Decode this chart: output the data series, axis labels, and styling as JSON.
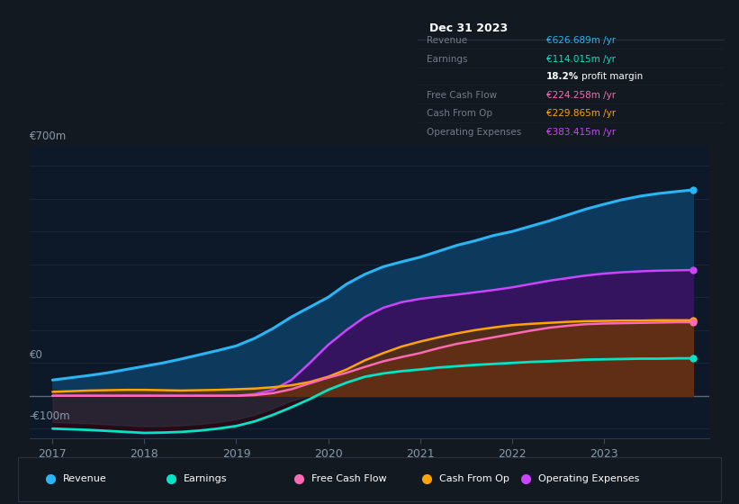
{
  "bg_color": "#131920",
  "plot_bg_color": "#131920",
  "panel_bg": "#0d0f14",
  "title_box": {
    "date": "Dec 31 2023",
    "rows": [
      {
        "label": "Revenue",
        "value": "€626.689m /yr",
        "value_color": "#29b6f6"
      },
      {
        "label": "Earnings",
        "value": "€114.015m /yr",
        "value_color": "#00e5c8"
      },
      {
        "label": "",
        "value2_bold": "18.2%",
        "value2_rest": " profit margin",
        "value_color": "#ffffff"
      },
      {
        "label": "Free Cash Flow",
        "value": "€224.258m /yr",
        "value_color": "#ff69b4"
      },
      {
        "label": "Cash From Op",
        "value": "€229.865m /yr",
        "value_color": "#ffa500"
      },
      {
        "label": "Operating Expenses",
        "value": "€383.415m /yr",
        "value_color": "#cc44ff"
      }
    ]
  },
  "ylim": [
    -130,
    760
  ],
  "ytick_positions": [
    -100,
    0,
    700
  ],
  "ytick_labels": [
    "-€100m",
    "€0",
    "€700m"
  ],
  "grid_lines": [
    -100,
    0,
    100,
    200,
    300,
    400,
    500,
    600,
    700
  ],
  "xlabel_ticks": [
    2017,
    2018,
    2019,
    2020,
    2021,
    2022,
    2023
  ],
  "series": {
    "x": [
      2017.0,
      2017.2,
      2017.4,
      2017.6,
      2017.8,
      2018.0,
      2018.2,
      2018.4,
      2018.6,
      2018.8,
      2019.0,
      2019.2,
      2019.4,
      2019.6,
      2019.8,
      2020.0,
      2020.2,
      2020.4,
      2020.6,
      2020.8,
      2021.0,
      2021.2,
      2021.4,
      2021.6,
      2021.8,
      2022.0,
      2022.2,
      2022.4,
      2022.6,
      2022.8,
      2023.0,
      2023.2,
      2023.4,
      2023.6,
      2023.8,
      2023.97
    ],
    "revenue": [
      48,
      55,
      62,
      70,
      80,
      90,
      100,
      112,
      125,
      138,
      152,
      175,
      205,
      240,
      270,
      300,
      340,
      370,
      393,
      408,
      422,
      440,
      458,
      472,
      488,
      500,
      516,
      532,
      550,
      568,
      583,
      597,
      608,
      616,
      622,
      627
    ],
    "earnings": [
      -100,
      -102,
      -104,
      -107,
      -110,
      -113,
      -112,
      -110,
      -106,
      -100,
      -92,
      -78,
      -58,
      -35,
      -10,
      18,
      40,
      58,
      68,
      75,
      80,
      86,
      90,
      94,
      97,
      100,
      103,
      105,
      107,
      110,
      111,
      112,
      113,
      113,
      114,
      114
    ],
    "free_cash_flow": [
      0,
      0,
      0,
      0,
      0,
      0,
      0,
      0,
      0,
      0,
      0,
      2,
      8,
      20,
      38,
      55,
      70,
      88,
      105,
      118,
      130,
      145,
      158,
      168,
      178,
      188,
      198,
      207,
      213,
      218,
      220,
      221,
      222,
      223,
      224,
      224
    ],
    "cash_from_op": [
      12,
      14,
      16,
      17,
      18,
      18,
      17,
      16,
      17,
      18,
      20,
      22,
      26,
      32,
      42,
      58,
      80,
      108,
      130,
      150,
      165,
      178,
      190,
      200,
      208,
      215,
      219,
      222,
      225,
      227,
      228,
      229,
      229,
      230,
      230,
      230
    ],
    "operating_expenses": [
      0,
      0,
      0,
      0,
      0,
      0,
      0,
      0,
      0,
      0,
      0,
      5,
      18,
      48,
      100,
      155,
      200,
      240,
      268,
      285,
      295,
      302,
      308,
      315,
      322,
      330,
      340,
      350,
      358,
      366,
      372,
      376,
      379,
      381,
      382,
      383
    ]
  },
  "colors": {
    "revenue_line": "#29b6f6",
    "revenue_fill": "#0d3a5c",
    "earnings_line": "#00e5c8",
    "earnings_fill_neg": "#2a0a15",
    "free_cash_flow_line": "#ff69b4",
    "free_cash_flow_fill": "#7a1a45",
    "cash_from_op_line": "#ffa500",
    "cash_from_op_fill": "#5a3800",
    "operating_expenses_line": "#cc44ff",
    "operating_expenses_fill": "#3a1060"
  },
  "legend_items": [
    {
      "label": "Revenue",
      "color": "#29b6f6"
    },
    {
      "label": "Earnings",
      "color": "#00e5c8"
    },
    {
      "label": "Free Cash Flow",
      "color": "#ff69b4"
    },
    {
      "label": "Cash From Op",
      "color": "#ffa500"
    },
    {
      "label": "Operating Expenses",
      "color": "#cc44ff"
    }
  ]
}
